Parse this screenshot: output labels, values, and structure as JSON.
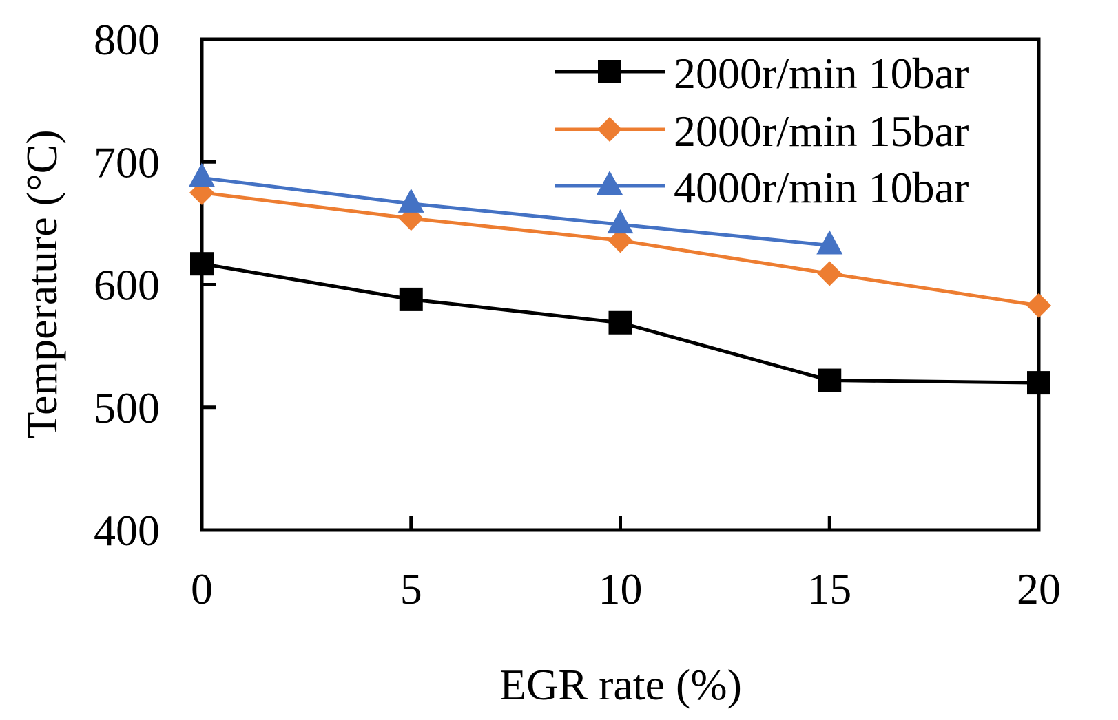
{
  "chart_data": {
    "type": "line",
    "title": "",
    "xlabel": "EGR rate (%)",
    "ylabel": "Temperature (°C)",
    "xlim": [
      0,
      20
    ],
    "ylim": [
      400,
      800
    ],
    "xticks": [
      0,
      5,
      10,
      15,
      20
    ],
    "yticks": [
      400,
      500,
      600,
      700,
      800
    ],
    "grid": false,
    "legend_position": "top-right",
    "series": [
      {
        "name": "2000r/min 10bar",
        "color": "#000000",
        "marker": "square",
        "x": [
          0,
          5,
          10,
          15,
          20
        ],
        "y": [
          617,
          588,
          569,
          522,
          520
        ]
      },
      {
        "name": "2000r/min 15bar",
        "color": "#ED7D31",
        "marker": "diamond",
        "x": [
          0,
          5,
          10,
          15,
          20
        ],
        "y": [
          675,
          654,
          636,
          609,
          583
        ]
      },
      {
        "name": "4000r/min 10bar",
        "color": "#4472C4",
        "marker": "triangle",
        "x": [
          0,
          5,
          10,
          15
        ],
        "y": [
          687,
          666,
          649,
          632
        ]
      }
    ]
  }
}
